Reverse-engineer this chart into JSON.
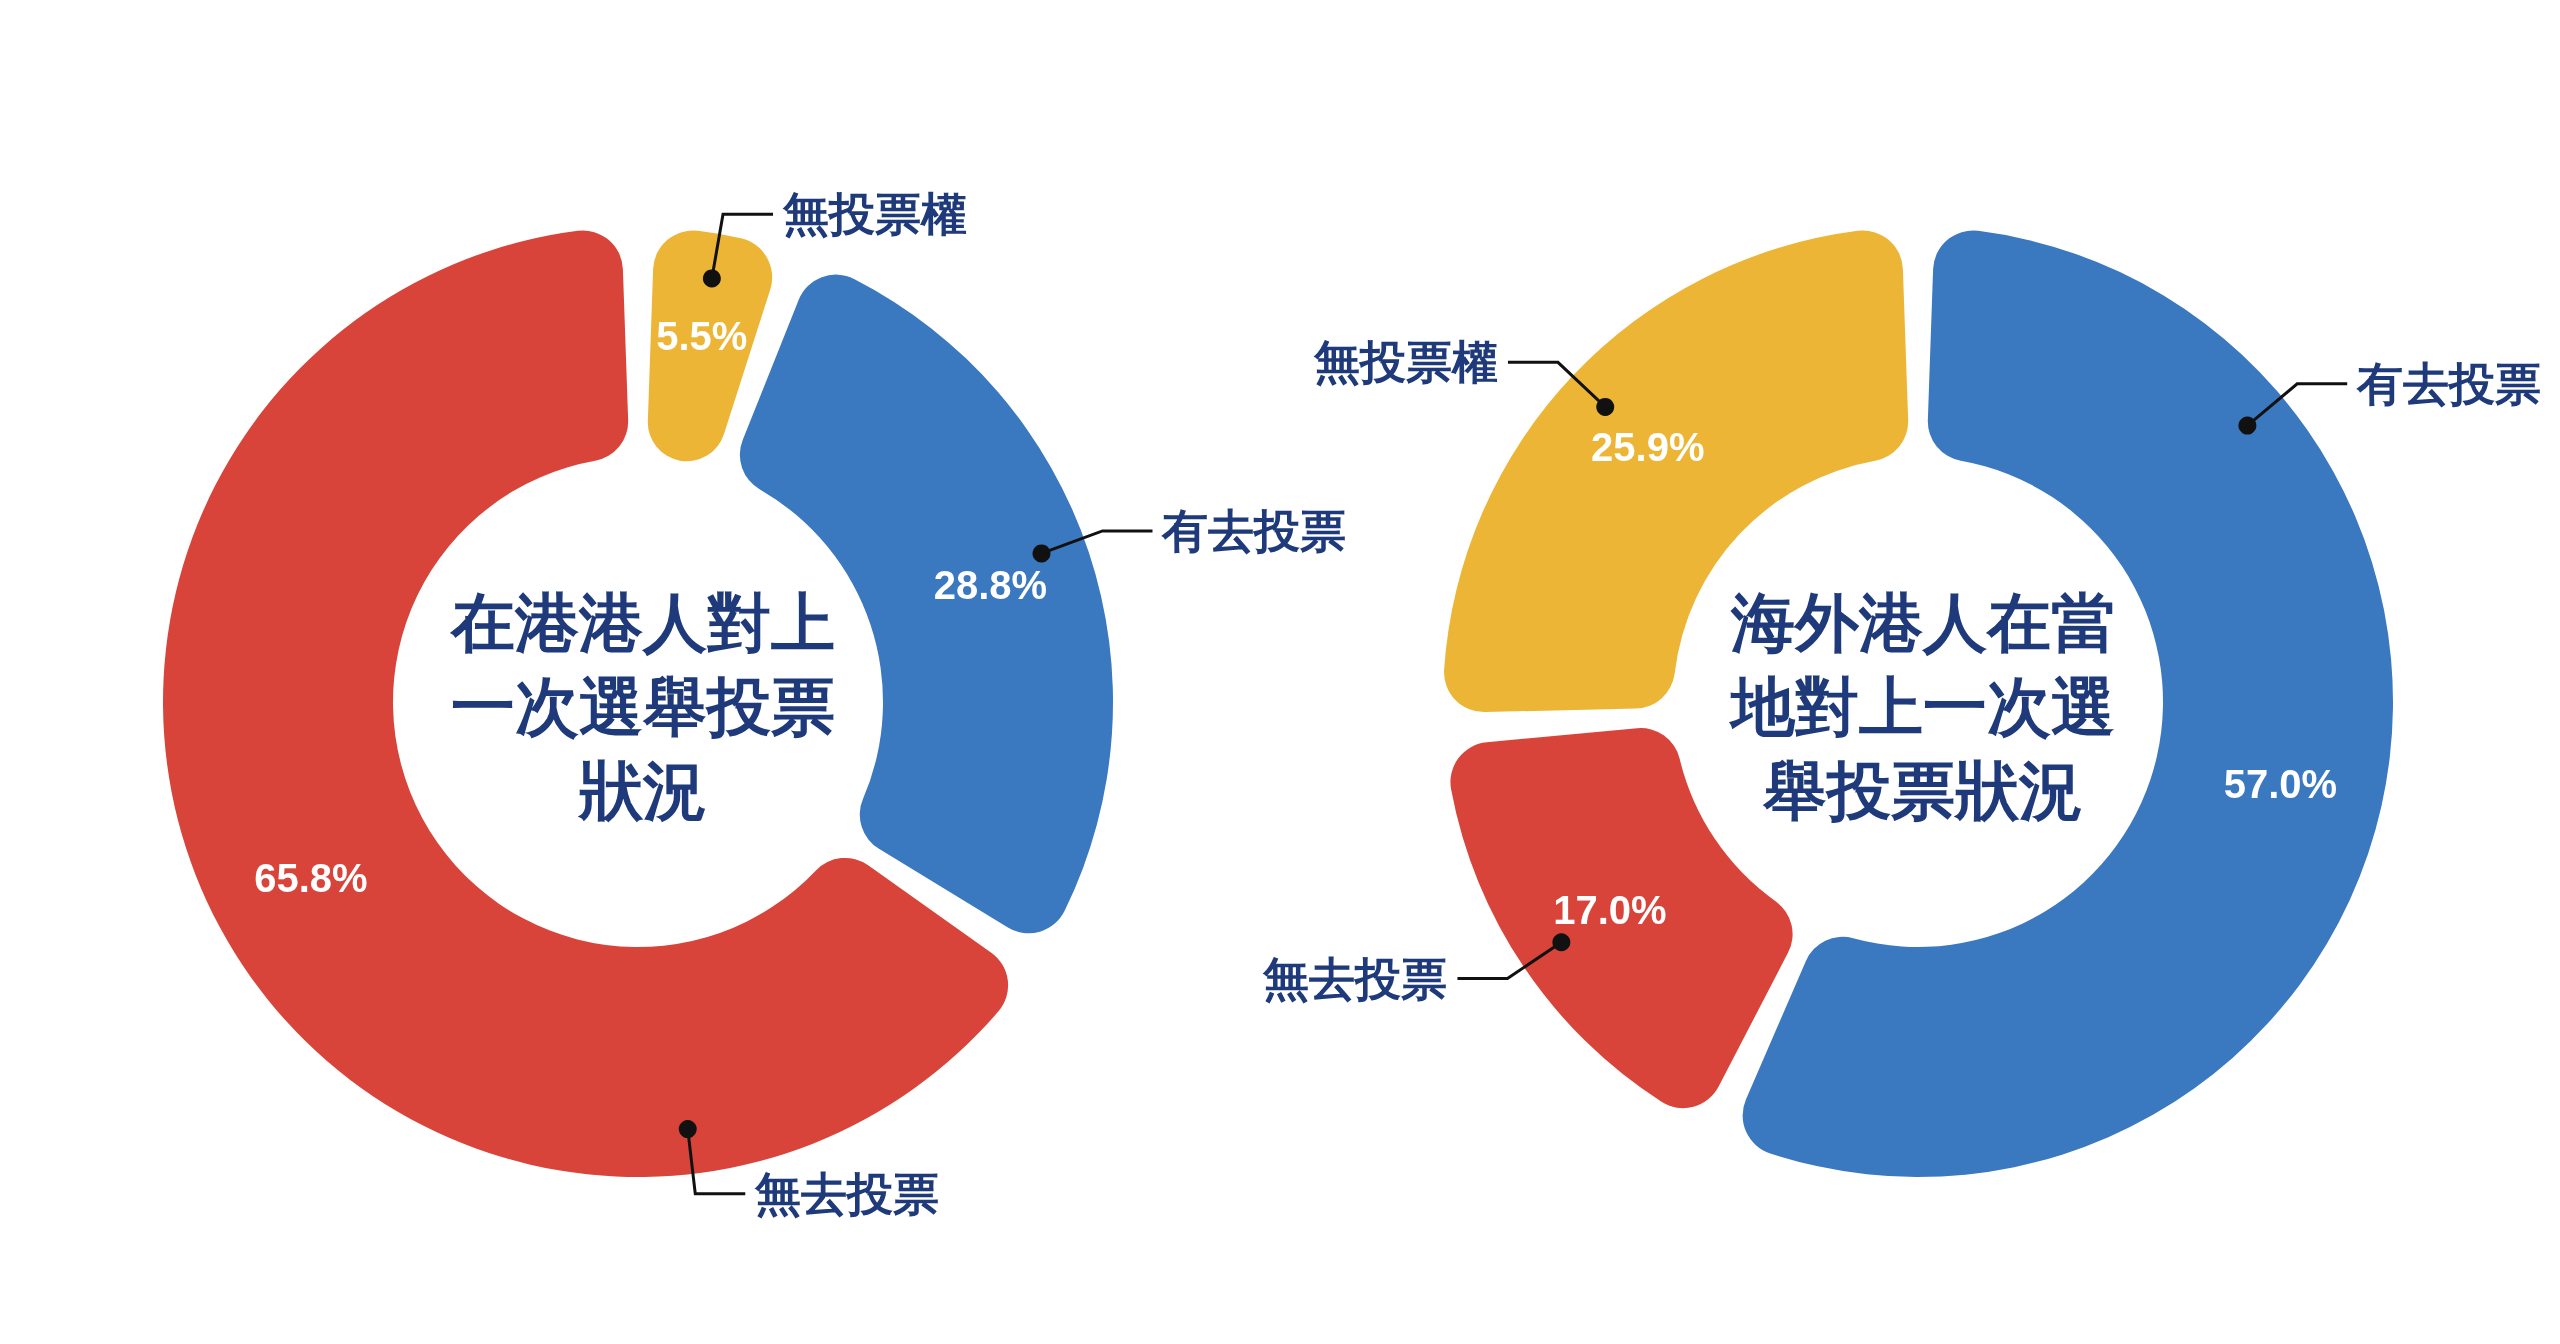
{
  "chart_data": [
    {
      "type": "donut",
      "title": "在港港人對上一次選舉投票狀況",
      "categories": [
        "無投票權",
        "有去投票",
        "無去投票"
      ],
      "values": [
        5.5,
        28.8,
        65.8
      ],
      "colors": [
        "#ecb535",
        "#3a78c0",
        "#d9443a"
      ],
      "value_labels": [
        "5.5%",
        "28.8%",
        "65.8%"
      ]
    },
    {
      "type": "donut",
      "title": "海外港人在當地對上一次選舉投票狀況",
      "categories": [
        "有去投票",
        "無去投票",
        "無投票權"
      ],
      "values": [
        57.0,
        17.0,
        25.9
      ],
      "colors": [
        "#3a78c0",
        "#d9443a",
        "#ecb535"
      ],
      "value_labels": [
        "57.0%",
        "17.0%",
        "25.9%"
      ]
    }
  ]
}
